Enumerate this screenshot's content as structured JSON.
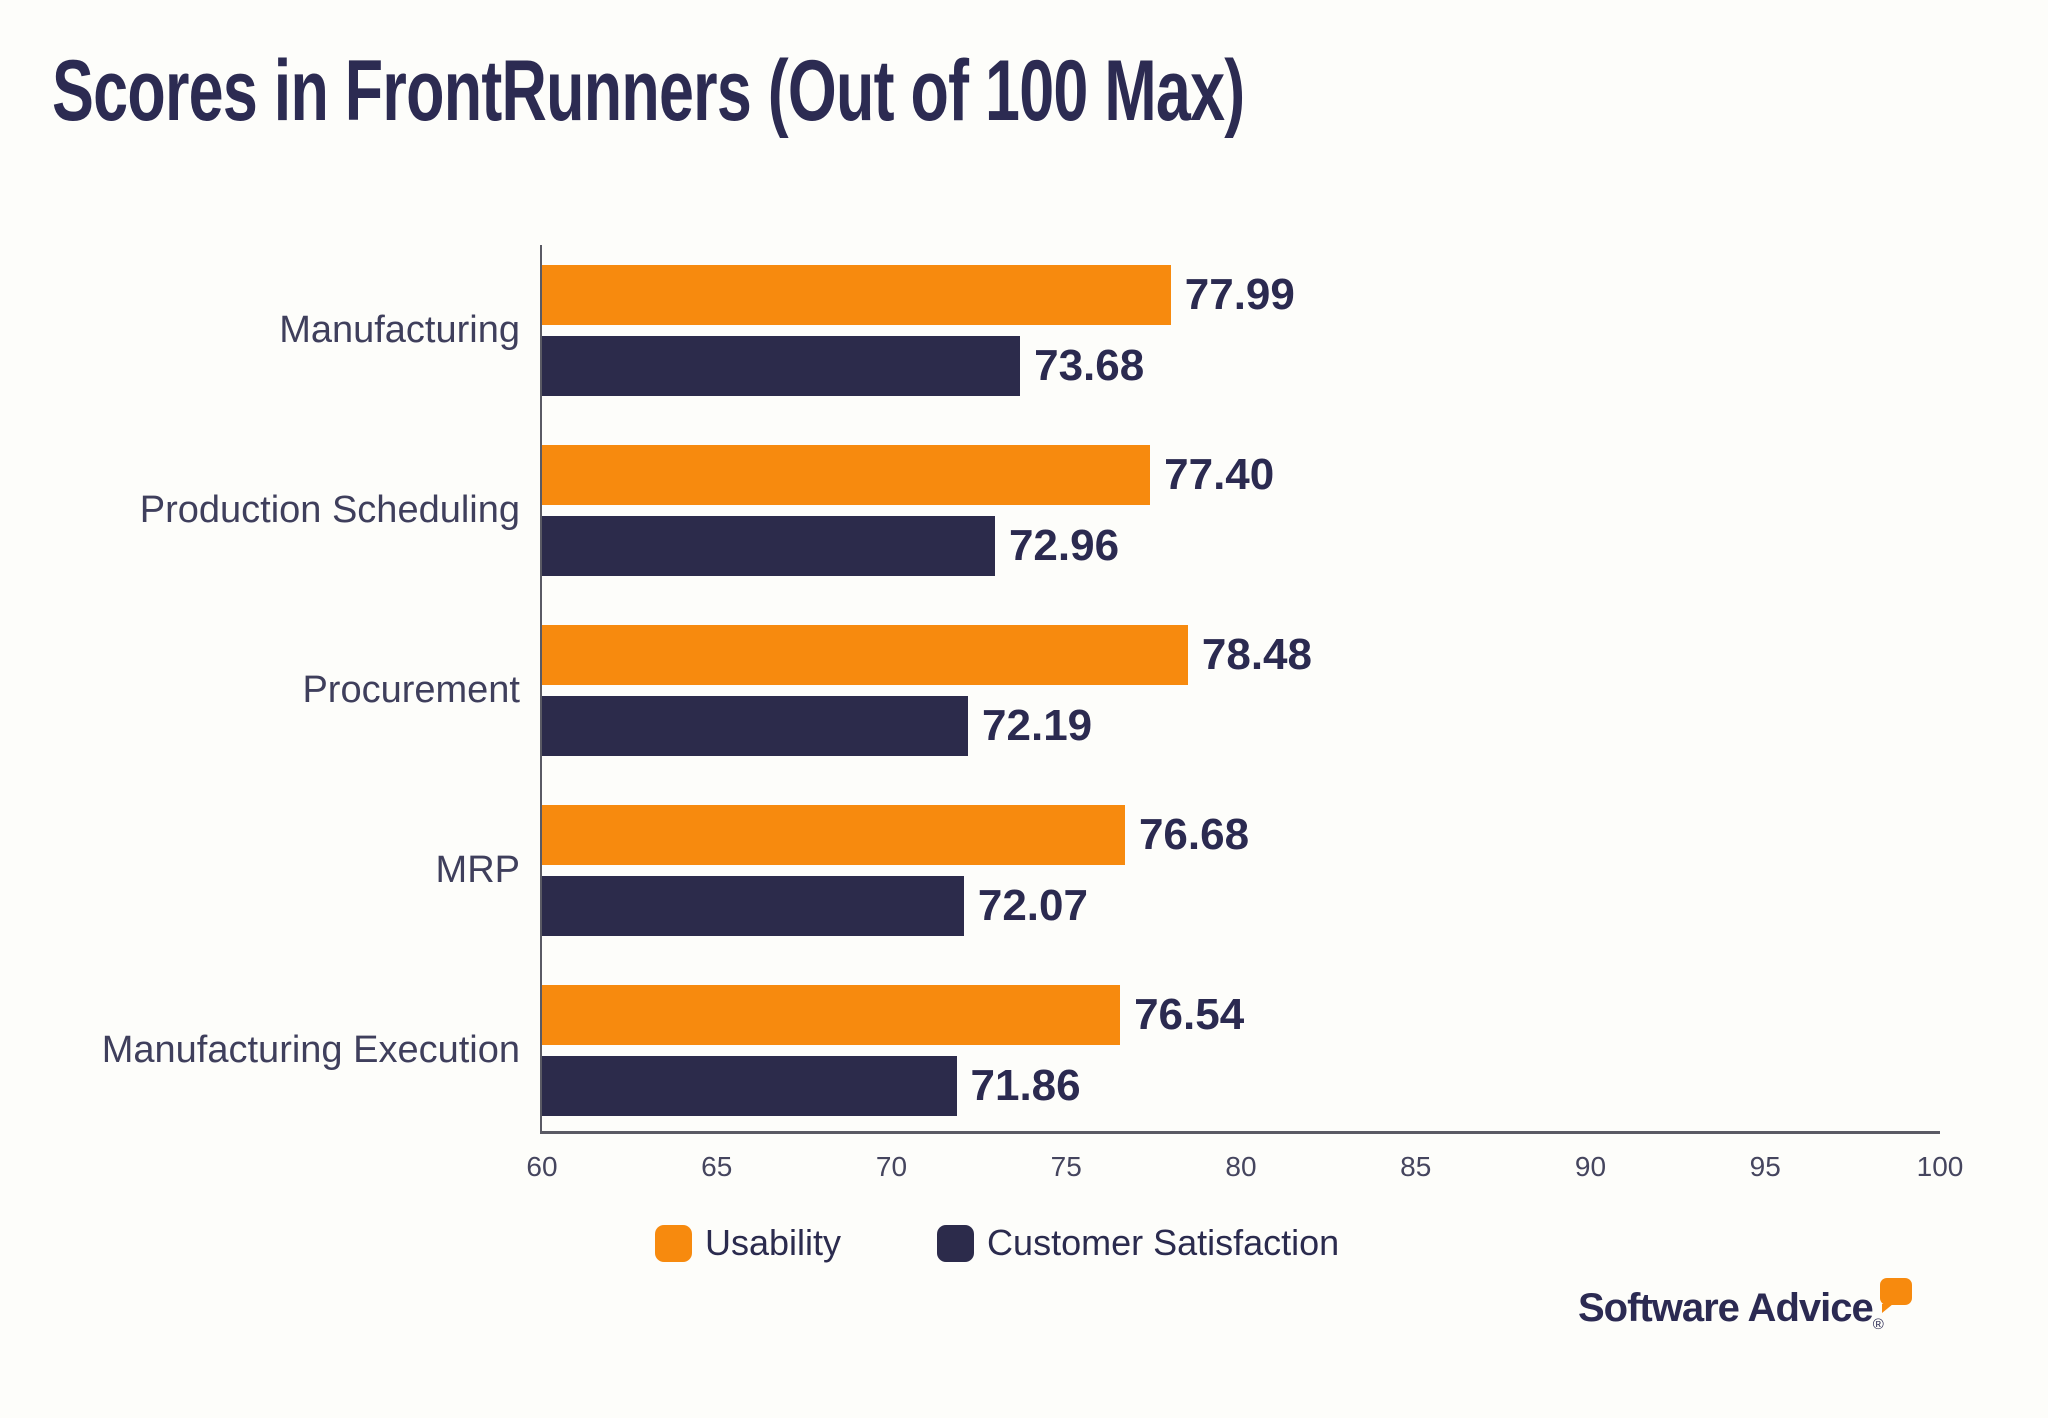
{
  "chart_data": {
    "type": "bar",
    "orientation": "horizontal",
    "title": "Scores in FrontRunners (Out of 100 Max)",
    "categories": [
      "Manufacturing",
      "Production Scheduling",
      "Procurement",
      "MRP",
      "Manufacturing Execution"
    ],
    "series": [
      {
        "name": "Usability",
        "color": "#F78A0E",
        "values": [
          77.99,
          77.4,
          78.48,
          76.68,
          76.54
        ]
      },
      {
        "name": "Customer Satisfaction",
        "color": "#2C2B4B",
        "values": [
          73.68,
          72.96,
          72.19,
          72.07,
          71.86
        ]
      }
    ],
    "xlim": [
      60,
      100
    ],
    "xticks": [
      60,
      65,
      70,
      75,
      80,
      85,
      90,
      95,
      100
    ],
    "grid": false,
    "legend_position": "bottom",
    "value_label_decimals": 2
  },
  "branding": {
    "logo_text": "Software Advice",
    "registered_mark": "®",
    "accent_color": "#F78A0E"
  },
  "colors": {
    "title_text": "#2C2B52",
    "axis_text": "#45455E",
    "category_text": "#3F3F5C",
    "value_text": "#2B2A50",
    "axis_line": "#5A5A64",
    "background": "#FDFDFA"
  }
}
